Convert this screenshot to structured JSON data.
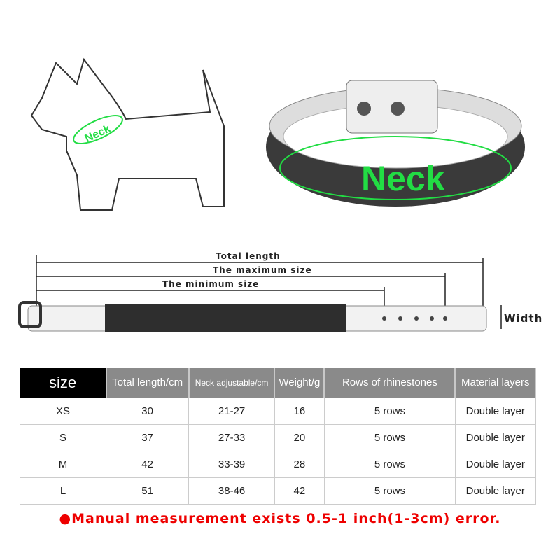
{
  "illustration": {
    "dog_label": "Neck",
    "collar_label": "Neck",
    "neck_color": "#22dd44"
  },
  "dimensions": {
    "total": "Total length",
    "maximum": "The maximum size",
    "minimum": "The minimum size",
    "width": "Width"
  },
  "table": {
    "headers": [
      "size",
      "Total length/cm",
      "Neck adjustable/cm",
      "Weight/g",
      "Rows of rhinestones",
      "Material layers"
    ],
    "rows": [
      [
        "XS",
        "30",
        "21-27",
        "16",
        "5 rows",
        "Double layer"
      ],
      [
        "S",
        "37",
        "27-33",
        "20",
        "5 rows",
        "Double layer"
      ],
      [
        "M",
        "42",
        "33-39",
        "28",
        "5 rows",
        "Double layer"
      ],
      [
        "L",
        "51",
        "38-46",
        "42",
        "5 rows",
        "Double layer"
      ]
    ]
  },
  "note": "●Manual measurement exists 0.5-1 inch(1-3cm) error."
}
